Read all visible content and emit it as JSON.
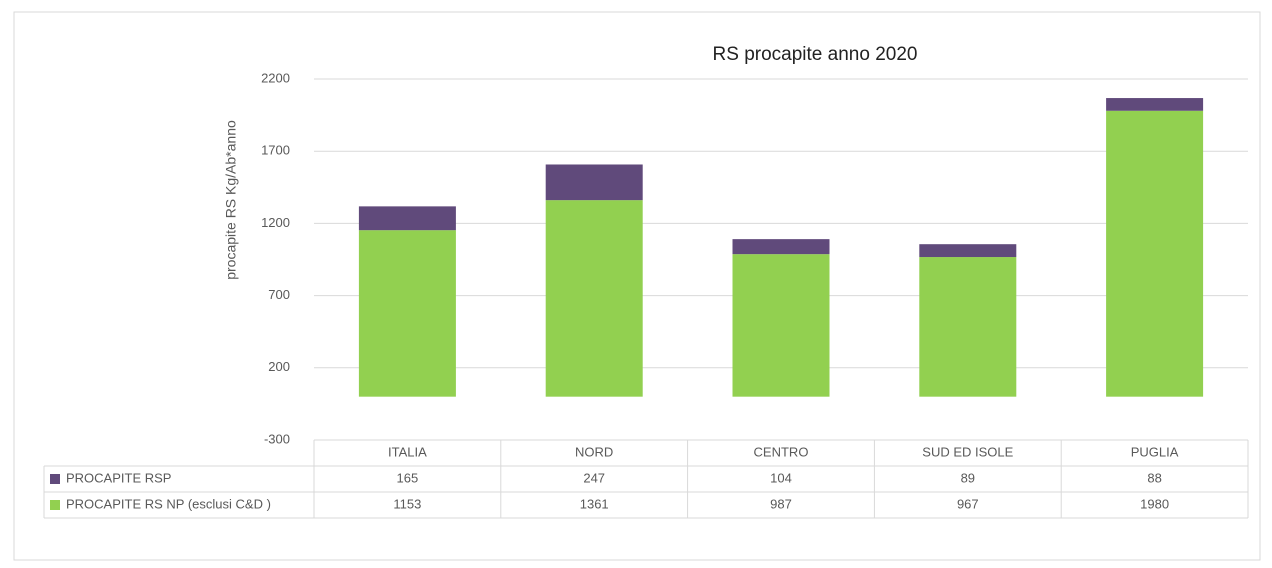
{
  "chart_data": {
    "type": "stacked_bar",
    "title": "RS procapite anno 2020",
    "y_label": "procapite  RS Kg/Ab*anno",
    "categories": [
      "ITALIA",
      "NORD",
      "CENTRO",
      "SUD ED ISOLE",
      "PUGLIA"
    ],
    "series": [
      {
        "name": "PROCAPITE  RSP",
        "color": "#604a7b",
        "values": [
          165,
          247,
          104,
          89,
          88
        ]
      },
      {
        "name": "PROCAPITE RS NP (esclusi C&D )",
        "color": "#92d050",
        "values": [
          1153,
          1361,
          987,
          967,
          1980
        ]
      }
    ],
    "ylim": [
      -300,
      2200
    ],
    "yticks": [
      -300,
      200,
      700,
      1200,
      1700,
      2200
    ],
    "grid": true,
    "data_table": true
  }
}
